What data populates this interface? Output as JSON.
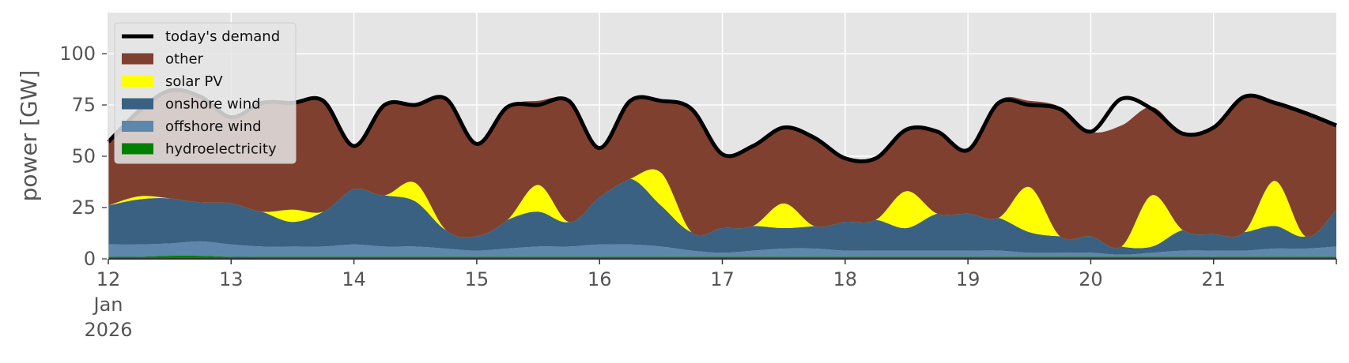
{
  "chart_data": {
    "type": "area",
    "ylabel": "power [GW]",
    "ylim": [
      0,
      120
    ],
    "yticks": [
      0,
      25,
      50,
      75,
      100
    ],
    "xlim": [
      12,
      22
    ],
    "xticks": [
      {
        "x": 12,
        "label": "12",
        "sub": [
          "Jan",
          "2026"
        ]
      },
      {
        "x": 13,
        "label": "13"
      },
      {
        "x": 14,
        "label": "14"
      },
      {
        "x": 15,
        "label": "15"
      },
      {
        "x": 16,
        "label": "16"
      },
      {
        "x": 17,
        "label": "17"
      },
      {
        "x": 18,
        "label": "18"
      },
      {
        "x": 19,
        "label": "19"
      },
      {
        "x": 20,
        "label": "20"
      },
      {
        "x": 21,
        "label": "21"
      }
    ],
    "grid": true,
    "legend_position": "top-left",
    "x": [
      12.0,
      12.25,
      12.5,
      12.75,
      13.0,
      13.25,
      13.5,
      13.75,
      14.0,
      14.25,
      14.5,
      14.75,
      15.0,
      15.25,
      15.5,
      15.75,
      16.0,
      16.25,
      16.5,
      16.75,
      17.0,
      17.25,
      17.5,
      17.75,
      18.0,
      18.25,
      18.5,
      18.75,
      19.0,
      19.25,
      19.5,
      19.75,
      20.0,
      20.25,
      20.5,
      20.75,
      21.0,
      21.25,
      21.5,
      21.75,
      22.0
    ],
    "series": [
      {
        "name": "hydroelectricity",
        "color": "#008000",
        "values": [
          1,
          1,
          1.5,
          1.5,
          1,
          1,
          1,
          1,
          1,
          1,
          1,
          1,
          1,
          1,
          1,
          1,
          1,
          1,
          1,
          1,
          1,
          1,
          1,
          1,
          1,
          1,
          1,
          1,
          1,
          1,
          1,
          1,
          1,
          1,
          1,
          1,
          1,
          1,
          1,
          1,
          1
        ]
      },
      {
        "name": "offshore wind",
        "color": "#5f87ab",
        "values": [
          6,
          6,
          6,
          7,
          6,
          5,
          5,
          5,
          6,
          5,
          5,
          4,
          3,
          4,
          5,
          5,
          6,
          6,
          5,
          3,
          2,
          3,
          4,
          4,
          3,
          3,
          3,
          3,
          3,
          3,
          2,
          2,
          2,
          1,
          2,
          3,
          3,
          3,
          4,
          4,
          5
        ]
      },
      {
        "name": "onshore wind",
        "color": "#3b6182",
        "values": [
          19,
          22,
          22,
          19,
          20,
          17,
          12,
          17,
          27,
          25,
          22,
          9,
          7,
          14,
          17,
          12,
          23,
          32,
          20,
          9,
          12,
          12,
          10,
          11,
          14,
          15,
          11,
          18,
          18,
          16,
          10,
          8,
          8,
          4,
          3,
          10,
          8,
          9,
          11,
          6,
          18
        ]
      },
      {
        "name": "solar PV",
        "color": "#ffff00",
        "values": [
          0,
          1.5,
          0,
          0,
          0,
          0,
          6,
          0,
          0,
          0,
          9,
          0,
          0,
          0,
          13,
          0,
          0,
          0,
          16,
          0,
          0,
          0,
          12,
          0,
          0,
          0,
          18,
          0,
          0,
          0,
          22,
          0,
          0,
          0,
          25,
          0,
          0,
          0,
          22,
          0,
          0
        ]
      },
      {
        "name": "other",
        "color": "#804030",
        "values": [
          31,
          43,
          53,
          52,
          42,
          53,
          52,
          54,
          21,
          44,
          38,
          64,
          45,
          55,
          41,
          59,
          24,
          39,
          35,
          60,
          36,
          39,
          37,
          44,
          31,
          31,
          30,
          41,
          31,
          57,
          42,
          63,
          51,
          59,
          43,
          47,
          52,
          66,
          39,
          61,
          42
        ]
      }
    ],
    "demand": {
      "name": "today's demand",
      "color": "#000000",
      "values": [
        57,
        72,
        82,
        79,
        69,
        76,
        76,
        77,
        55,
        75,
        75,
        78,
        56,
        74,
        75,
        77,
        54,
        77,
        77,
        73,
        51,
        55,
        64,
        59,
        49,
        49,
        63,
        62,
        53,
        76,
        75,
        73,
        62,
        78,
        73,
        61,
        64,
        79,
        76,
        71,
        65
      ]
    },
    "legend": [
      "today's demand",
      "other",
      "solar PV",
      "onshore wind",
      "offshore wind",
      "hydroelectricity"
    ]
  }
}
